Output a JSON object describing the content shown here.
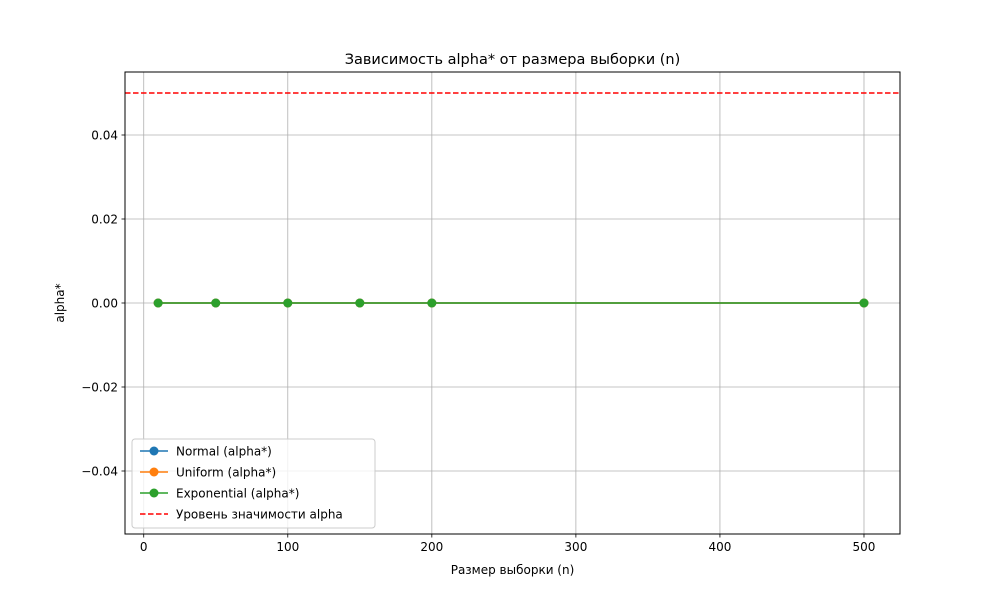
{
  "chart_data": {
    "type": "line",
    "title": "Зависимость alpha* от размера выборки (n)",
    "xlabel": "Размер выборки (n)",
    "ylabel": "alpha*",
    "xlim": [
      -13,
      525
    ],
    "ylim": [
      -0.055,
      0.055
    ],
    "xticks": [
      0,
      100,
      200,
      300,
      400,
      500
    ],
    "xtick_labels": [
      "0",
      "100",
      "200",
      "300",
      "400",
      "500"
    ],
    "yticks": [
      -0.04,
      -0.02,
      0.0,
      0.02,
      0.04
    ],
    "ytick_labels": [
      "−0.04",
      "−0.02",
      "0.00",
      "0.02",
      "0.04"
    ],
    "grid": true,
    "legend_position": "lower-left",
    "x": [
      10,
      50,
      100,
      150,
      200,
      500
    ],
    "series": [
      {
        "name": "Normal (alpha*)",
        "values": [
          0,
          0,
          0,
          0,
          0,
          0
        ],
        "color": "#1f77b4",
        "marker": "circle"
      },
      {
        "name": "Uniform (alpha*)",
        "values": [
          0,
          0,
          0,
          0,
          0,
          0
        ],
        "color": "#ff7f0e",
        "marker": "circle"
      },
      {
        "name": "Exponential (alpha*)",
        "values": [
          0,
          0,
          0,
          0,
          0,
          0
        ],
        "color": "#2ca02c",
        "marker": "circle"
      }
    ],
    "hlines": [
      {
        "name": "Уровень значимости alpha",
        "y": 0.05,
        "color": "#ff0000",
        "style": "dashed"
      }
    ]
  }
}
